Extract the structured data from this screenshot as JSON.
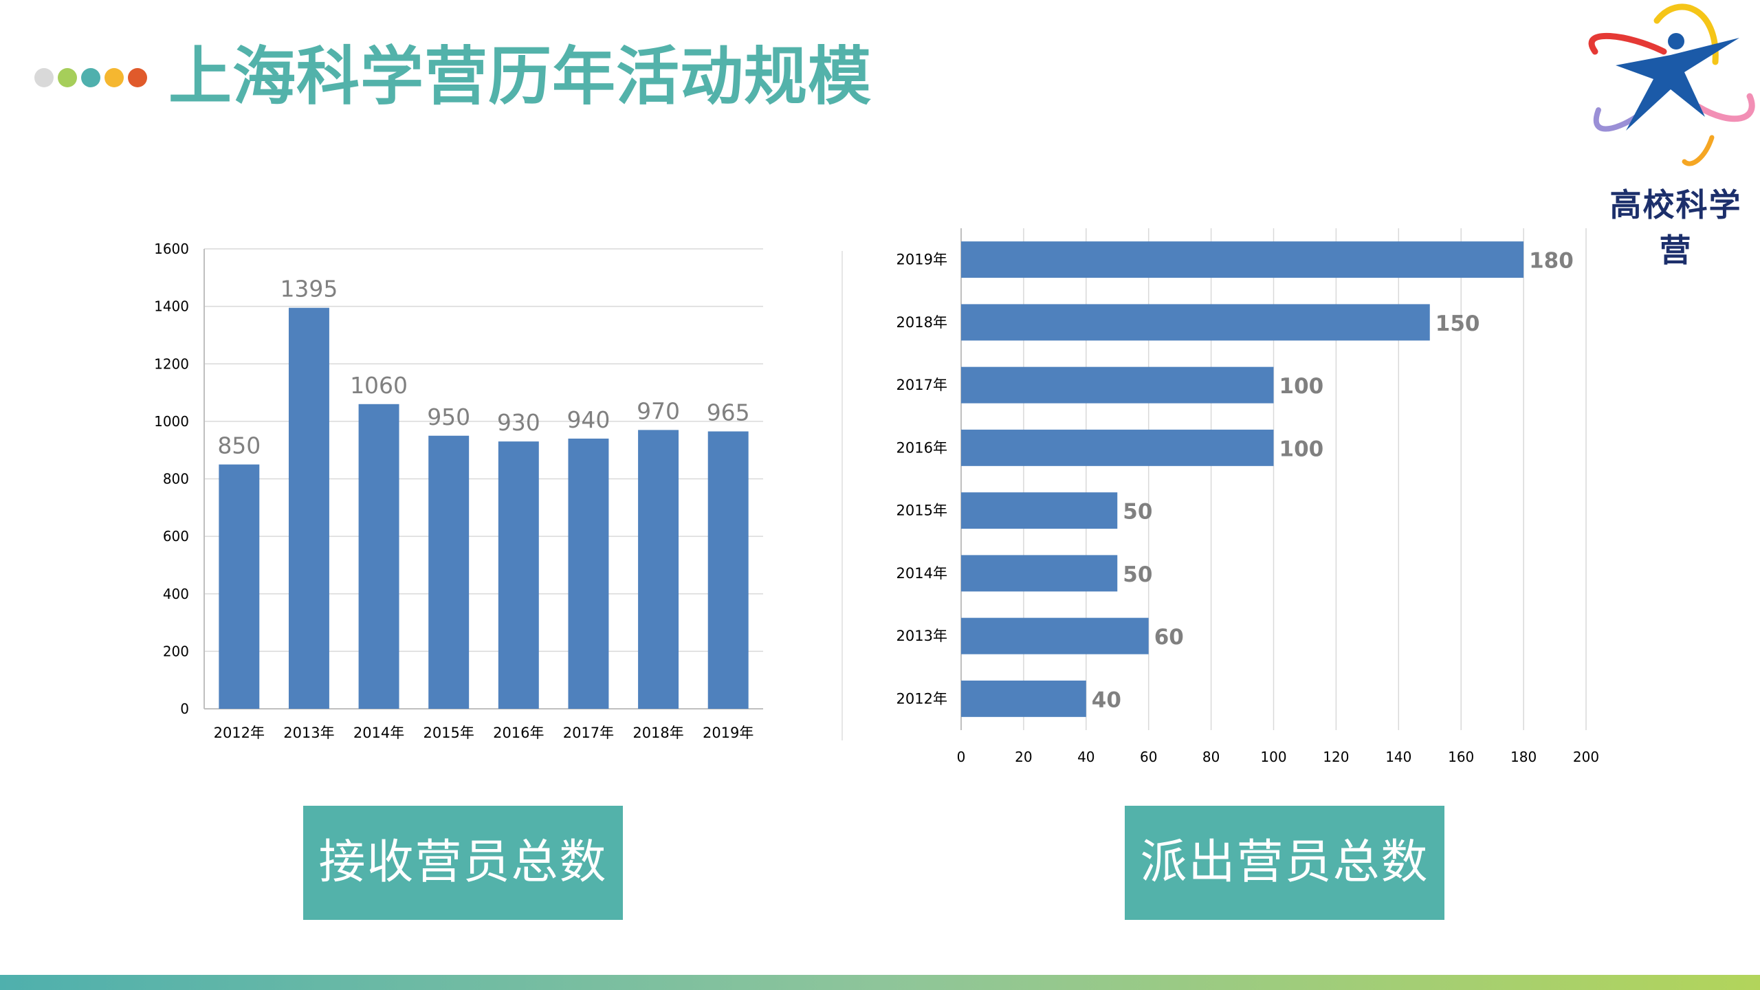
{
  "page": {
    "title": "上海科学营历年活动规模",
    "dots": [
      "#d9d9d9",
      "#a6ce5a",
      "#4fb0ad",
      "#f5b730",
      "#e05a2b"
    ],
    "accent": "#53b2aa",
    "bar_color": "#4f81bd"
  },
  "logo": {
    "text": "高校科学营",
    "colors": [
      "#1b5aa8",
      "#e53935",
      "#f5c518",
      "#f28fb5",
      "#9a8fd6"
    ]
  },
  "captions": {
    "left": "接收营员总数",
    "right": "派出营员总数"
  },
  "chart_data": [
    {
      "type": "bar",
      "orientation": "vertical",
      "categories": [
        "2012年",
        "2013年",
        "2014年",
        "2015年",
        "2016年",
        "2017年",
        "2018年",
        "2019年"
      ],
      "values": [
        850,
        1395,
        1060,
        950,
        930,
        940,
        970,
        965
      ],
      "ylim": [
        0,
        1600
      ],
      "yticks": [
        0,
        200,
        400,
        600,
        800,
        1000,
        1200,
        1400,
        1600
      ],
      "grid": true,
      "data_labels": true
    },
    {
      "type": "bar",
      "orientation": "horizontal",
      "categories": [
        "2019年",
        "2018年",
        "2017年",
        "2016年",
        "2015年",
        "2014年",
        "2013年",
        "2012年"
      ],
      "values": [
        180,
        150,
        100,
        100,
        50,
        50,
        60,
        40
      ],
      "xlim": [
        0,
        200
      ],
      "xticks": [
        0,
        20,
        40,
        60,
        80,
        100,
        120,
        140,
        160,
        180,
        200
      ],
      "grid": true,
      "data_labels": true
    }
  ]
}
